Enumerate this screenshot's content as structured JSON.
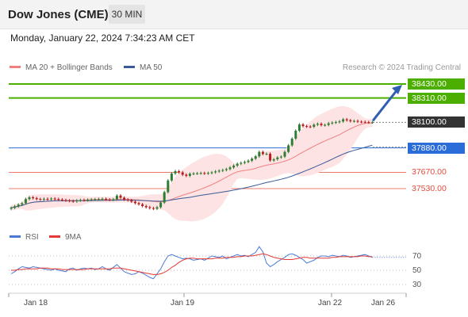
{
  "header": {
    "title": "Dow Jones (CME)",
    "timeframe": "30 MIN",
    "datetime": "Monday, January 22, 2024 7:34:23 AM CET"
  },
  "legend": {
    "ma20": "MA 20 + Bollinger Bands",
    "ma50": "MA 50",
    "credit": "Research © 2024 Trading Central",
    "rsi": "RSI",
    "rsi_ma": "9MA"
  },
  "colors": {
    "resistance": "#4caf00",
    "current": "#333333",
    "pivot": "#2a6dd9",
    "support": "#e74c3c",
    "ma20": "#f08080",
    "ma50": "#3a5a9a",
    "bollinger_fill": "#fde3e3",
    "candle_up": "#2e7d32",
    "candle_down": "#b71c1c",
    "rsi_line": "#4a7bd4",
    "rsi_ma_line": "#e53935",
    "arrow": "#2f5fb3"
  },
  "levels": [
    {
      "value": 38430,
      "label": "38430.00",
      "type": "resistance"
    },
    {
      "value": 38310,
      "label": "38310.00",
      "type": "resistance"
    },
    {
      "value": 38100,
      "label": "38100.00",
      "type": "current"
    },
    {
      "value": 37880,
      "label": "37880.00",
      "type": "pivot"
    },
    {
      "value": 37670,
      "label": "37670.00",
      "type": "support"
    },
    {
      "value": 37530,
      "label": "37530.00",
      "type": "support"
    }
  ],
  "chart_data": {
    "type": "candlestick",
    "instrument": "Dow Jones (CME)",
    "timeframe": "30 MIN",
    "x_ticks": [
      "Jan 18",
      "Jan 19",
      "Jan 22",
      "Jan 26"
    ],
    "current_price": 38100,
    "target": 38430,
    "price_series": [
      37365,
      37378,
      37392,
      37404,
      37440,
      37455,
      37448,
      37440,
      37437,
      37442,
      37438,
      37444,
      37440,
      37436,
      37432,
      37428,
      37424,
      37420,
      37428,
      37432,
      37430,
      37434,
      37436,
      37438,
      37440,
      37442,
      37436,
      37434,
      37438,
      37470,
      37452,
      37436,
      37430,
      37418,
      37405,
      37395,
      37380,
      37370,
      37362,
      37357,
      37370,
      37410,
      37500,
      37600,
      37660,
      37680,
      37670,
      37650,
      37640,
      37658,
      37660,
      37662,
      37664,
      37660,
      37665,
      37670,
      37678,
      37684,
      37690,
      37698,
      37712,
      37728,
      37744,
      37752,
      37760,
      37770,
      37788,
      37808,
      37846,
      37828,
      37830,
      37772,
      37782,
      37798,
      37805,
      37846,
      37902,
      37960,
      38028,
      38082,
      38068,
      38064,
      38062,
      38080,
      38088,
      38076,
      38078,
      38092,
      38098,
      38102,
      38108,
      38126,
      38118,
      38110,
      38112,
      38106,
      38104,
      38102,
      38100,
      38100
    ],
    "rsi": {
      "ticks": [
        70,
        50,
        30
      ],
      "series": [
        45,
        48,
        52,
        55,
        54,
        53,
        55,
        54,
        53,
        52,
        51,
        50,
        52,
        50,
        49,
        48,
        52,
        53,
        50,
        52,
        53,
        52,
        53,
        51,
        52,
        55,
        52,
        50,
        54,
        58,
        53,
        48,
        46,
        44,
        45,
        48,
        46,
        43,
        40,
        38,
        45,
        52,
        62,
        70,
        72,
        70,
        68,
        66,
        67,
        66,
        64,
        65,
        66,
        64,
        67,
        70,
        69,
        68,
        70,
        66,
        68,
        70,
        72,
        70,
        71,
        69,
        72,
        75,
        83,
        76,
        60,
        55,
        58,
        62,
        65,
        68,
        72,
        73,
        71,
        68,
        65,
        60,
        62,
        64,
        68,
        70,
        70,
        69,
        71,
        70,
        69,
        71,
        70,
        68,
        69,
        70,
        71,
        72,
        70,
        68
      ],
      "ma": [
        50,
        50,
        51,
        51,
        52,
        52,
        52,
        52,
        53,
        53,
        53,
        52,
        52,
        52,
        51,
        51,
        51,
        51,
        51,
        51,
        51,
        52,
        52,
        52,
        52,
        52,
        52,
        52,
        53,
        53,
        53,
        52,
        51,
        50,
        49,
        48,
        47,
        46,
        45,
        44,
        44,
        45,
        47,
        50,
        54,
        57,
        61,
        64,
        66,
        67,
        67,
        66,
        66,
        66,
        66,
        66,
        67,
        67,
        67,
        68,
        68,
        68,
        69,
        69,
        70,
        70,
        70,
        71,
        72,
        73,
        72,
        70,
        68,
        67,
        66,
        65,
        65,
        65,
        66,
        67,
        68,
        68,
        67,
        67,
        67,
        67,
        67,
        67,
        68,
        68,
        69,
        69,
        69,
        69,
        69,
        69,
        70,
        70,
        69,
        69
      ]
    }
  }
}
